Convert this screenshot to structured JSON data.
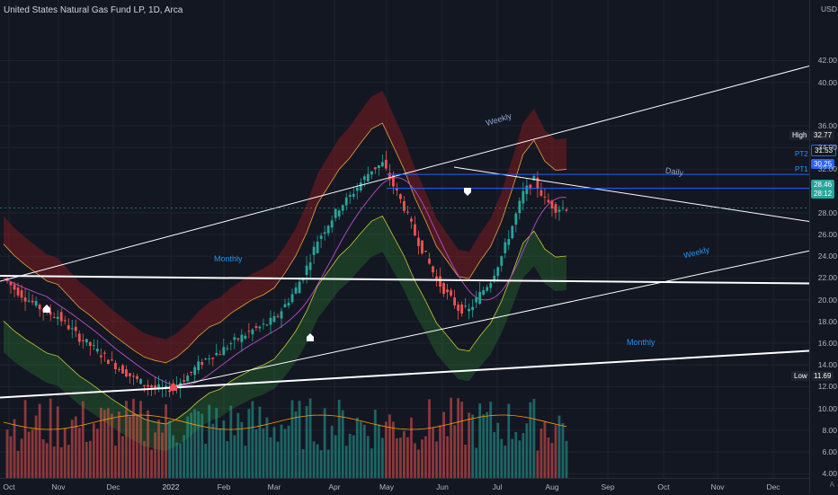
{
  "title": "United States Natural Gas Fund LP, 1D, Arca",
  "currency": "USD",
  "y_ticks": [
    "42.00",
    "40.00",
    "36.00",
    "34.00",
    "32.00",
    "28.00",
    "26.00",
    "24.00",
    "22.00",
    "20.00",
    "18.00",
    "16.00",
    "14.00",
    "12.00",
    "10.00",
    "8.00",
    "6.00",
    "4.00"
  ],
  "x_ticks": [
    "Oct",
    "Nov",
    "Dec",
    "2022",
    "Feb",
    "Mar",
    "Apr",
    "May",
    "Jun",
    "Jul",
    "Aug",
    "Sep",
    "Oct",
    "Nov",
    "Dec"
  ],
  "scale_mode": "A",
  "badges": {
    "high_label": "High",
    "high_value": "32.77",
    "pt2_label": "PT2",
    "pt2_value": "31.53",
    "pt1_label": "PT1",
    "pt1_value": "30.25",
    "price1": "28.46",
    "price2": "28:12",
    "low_label": "Low",
    "low_value": "11.69"
  },
  "trendline_labels": {
    "weekly_upper": "Weekly",
    "daily": "Daily",
    "monthly_upper": "Monthly",
    "weekly_lower": "Weekly",
    "monthly_lower": "Monthly"
  },
  "colors": {
    "background": "#131722",
    "up": "#26a69a",
    "down": "#ef5350",
    "price_badge": "#26a69a",
    "high_low_badge": "#1e222d",
    "pt_badge": "#2962ff",
    "trendline": "#ffffff",
    "label_text": "#2196f3"
  },
  "chart_data": {
    "type": "candlestick",
    "symbol": "UNG",
    "interval": "1D",
    "ylim": [
      4,
      43
    ],
    "price_badges": [
      32.77,
      31.53,
      30.25,
      28.46,
      11.69
    ],
    "closes": [
      22.0,
      21.0,
      20.2,
      19.5,
      18.8,
      18.5,
      17.5,
      16.5,
      15.8,
      15.0,
      14.2,
      13.5,
      12.8,
      12.2,
      11.9,
      11.7,
      12.2,
      13.0,
      14.0,
      14.8,
      15.2,
      16.0,
      16.6,
      17.2,
      17.6,
      18.2,
      19.5,
      21.0,
      23.0,
      25.5,
      27.0,
      28.5,
      29.5,
      30.8,
      32.0,
      32.5,
      30.5,
      28.5,
      26.0,
      24.0,
      21.8,
      20.5,
      19.2,
      19.0,
      20.5,
      21.8,
      24.0,
      26.8,
      29.8,
      31.0,
      29.2,
      28.4,
      28.5
    ]
  }
}
